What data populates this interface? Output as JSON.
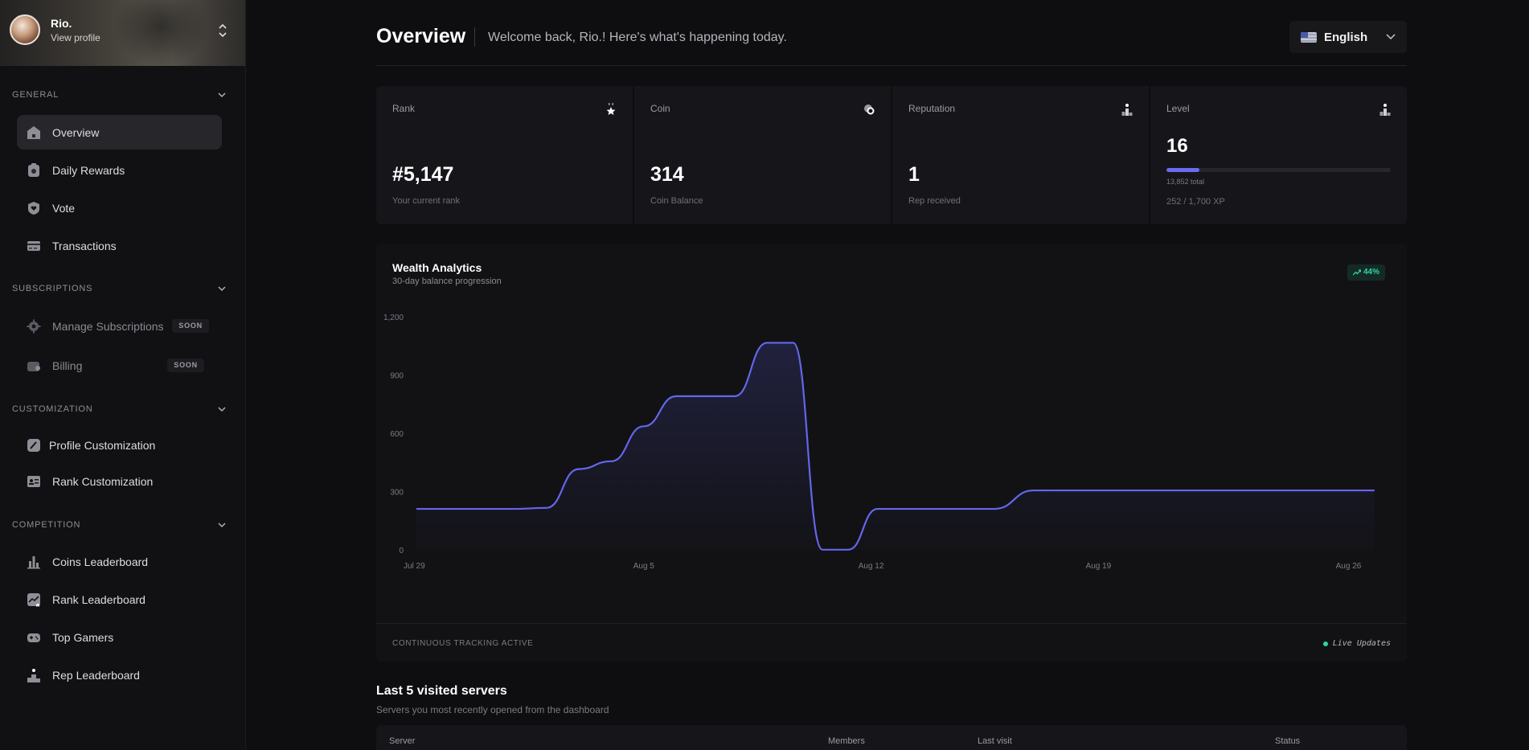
{
  "profile": {
    "name": "Rio.",
    "link": "View profile"
  },
  "sidebar": {
    "sections": [
      {
        "title": "GENERAL",
        "items": [
          {
            "label": "Overview",
            "icon": "home-icon",
            "active": true
          },
          {
            "label": "Daily Rewards",
            "icon": "gift-icon"
          },
          {
            "label": "Vote",
            "icon": "shield-heart-icon"
          },
          {
            "label": "Transactions",
            "icon": "card-icon"
          }
        ]
      },
      {
        "title": "SUBSCRIPTIONS",
        "items": [
          {
            "label": "Manage Subscriptions",
            "icon": "gear-icon",
            "badge": "SOON"
          },
          {
            "label": "Billing",
            "icon": "wallet-icon",
            "badge": "SOON"
          }
        ]
      },
      {
        "title": "CUSTOMIZATION",
        "items": [
          {
            "label": "Profile Customization",
            "icon": "brush-icon"
          },
          {
            "label": "Rank Customization",
            "icon": "id-card-icon"
          }
        ]
      },
      {
        "title": "COMPETITION",
        "items": [
          {
            "label": "Coins Leaderboard",
            "icon": "bar-chart-icon"
          },
          {
            "label": "Rank Leaderboard",
            "icon": "rank-chart-icon"
          },
          {
            "label": "Top Gamers",
            "icon": "gamepad-icon"
          },
          {
            "label": "Rep Leaderboard",
            "icon": "podium-icon"
          }
        ]
      }
    ]
  },
  "header": {
    "title": "Overview",
    "subtitle": "Welcome back, Rio.! Here's what's happening today.",
    "language": "English"
  },
  "stats": {
    "rank": {
      "label": "Rank",
      "value": "#5,147",
      "sub": "Your current rank"
    },
    "coin": {
      "label": "Coin",
      "value": "314",
      "sub": "Coin Balance"
    },
    "reputation": {
      "label": "Reputation",
      "value": "1",
      "sub": "Rep received"
    },
    "level": {
      "label": "Level",
      "value": "16",
      "total": "13,852 total",
      "xp": "252 / 1,700 XP",
      "progress": 0.148
    }
  },
  "analytics": {
    "title": "Wealth Analytics",
    "subtitle": "30-day balance progression",
    "trend": "44%",
    "footer_left": "CONTINUOUS TRACKING ACTIVE",
    "footer_right": "Live Updates"
  },
  "chart_data": {
    "type": "area",
    "ylim": [
      0,
      1200
    ],
    "yticks": [
      "1,200",
      "900",
      "600",
      "300",
      "0"
    ],
    "xtick_labels": [
      "Jul 29",
      "Aug 5",
      "Aug 12",
      "Aug 19",
      "Aug 26"
    ],
    "x": [
      0,
      2,
      3,
      4,
      5,
      6,
      7,
      8,
      9,
      9.8,
      10.8,
      11.6,
      12.5,
      13.3,
      14.2,
      15.6,
      16.8,
      17.8,
      19,
      20,
      21,
      22,
      23,
      24,
      25,
      26,
      27,
      28,
      29.5
    ],
    "values": [
      215,
      215,
      215,
      220,
      420,
      460,
      640,
      795,
      795,
      795,
      1070,
      1070,
      5,
      5,
      215,
      215,
      215,
      215,
      310,
      310,
      310,
      310,
      310,
      310,
      310,
      310,
      310,
      310,
      310
    ],
    "grid": false
  },
  "servers": {
    "title": "Last 5 visited servers",
    "subtitle": "Servers you most recently opened from the dashboard",
    "columns": [
      "Server",
      "Members",
      "Last visit",
      "Status"
    ]
  }
}
